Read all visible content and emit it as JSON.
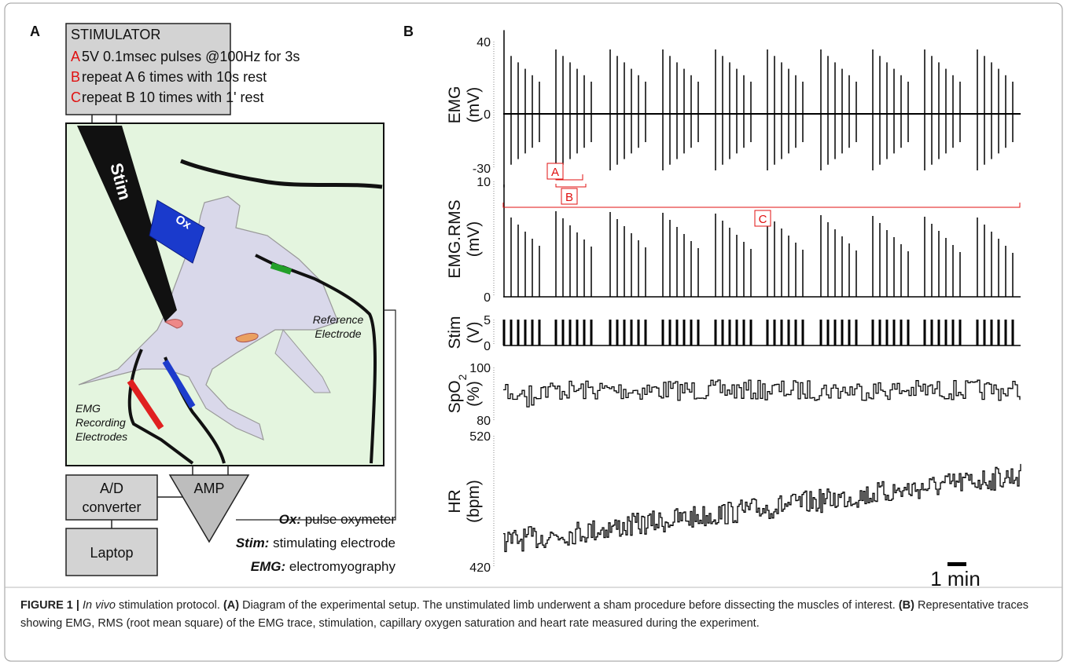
{
  "panel_a": {
    "label": "A",
    "stimulator": {
      "title": "STIMULATOR",
      "lines": [
        {
          "key": "A",
          "text": "5V 0.1msec pulses @100Hz for 3s"
        },
        {
          "key": "B",
          "text": "repeat A 6 times with 10s rest"
        },
        {
          "key": "C",
          "text": "repeat B 10 times with 1' rest"
        }
      ]
    },
    "stim_probe": "Stim",
    "oximeter": "Ox",
    "reference_electrode": [
      "Reference",
      "Electrode"
    ],
    "emg_electrodes": [
      "EMG",
      "Recording",
      "Electrodes"
    ],
    "ad_converter": [
      "A/D",
      "converter"
    ],
    "amplifier": "AMP",
    "laptop": "Laptop",
    "legend": [
      {
        "term": "Ox:",
        "desc": "pulse oxymeter"
      },
      {
        "term": "Stim:",
        "desc": "stimulating electrode"
      },
      {
        "term": "EMG:",
        "desc": "electromyography"
      }
    ]
  },
  "panel_b": {
    "label": "B",
    "traces": [
      {
        "name": "EMG",
        "unit": "(mV)",
        "ticks": [
          40,
          0,
          -30
        ]
      },
      {
        "name": "EMG.RMS",
        "unit": "(mV)",
        "ticks": [
          10,
          0
        ]
      },
      {
        "name": "Stim",
        "unit": "(V)",
        "ticks": [
          5,
          0
        ]
      },
      {
        "name": "SpO",
        "sub": "2",
        "unit": "(%)",
        "ticks": [
          100,
          80
        ]
      },
      {
        "name": "HR",
        "unit": "(bpm)",
        "ticks": [
          520,
          420
        ]
      }
    ],
    "brackets": [
      "A",
      "B",
      "C"
    ],
    "scale_bar": "1 min"
  },
  "caption": [
    {
      "text": "FIGURE 1 | ",
      "style": "bold"
    },
    {
      "text": "In vivo",
      "style": "italic"
    },
    {
      "text": " stimulation protocol. ",
      "style": "normal"
    },
    {
      "text": "(A)",
      "style": "bold"
    },
    {
      "text": " Diagram of the experimental setup. The unstimulated limb underwent a sham procedure before dissecting the muscles of interest. ",
      "style": "normal"
    },
    {
      "text": "(B)",
      "style": "bold"
    },
    {
      "text": " Representative traces showing EMG, RMS (root mean square) of the EMG trace, stimulation, capillary oxygen saturation and heart rate measured during the experiment.",
      "style": "normal"
    }
  ]
}
